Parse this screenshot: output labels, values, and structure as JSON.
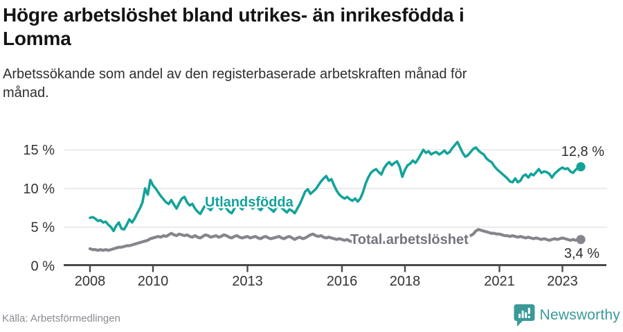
{
  "header": {
    "title_lines": [
      "Högre arbetslöshet bland utrikes- än inrikesfödda i",
      "Lomma"
    ],
    "subtitle_lines": [
      "Arbetssökande som andel av den registerbaserade arbetskraften månad för",
      "månad."
    ]
  },
  "footer": {
    "source": "Källa: Arbetsförmedlingen",
    "brand": "Newsworthy"
  },
  "colors": {
    "foreign_born_line": "#14a39a",
    "total_line": "#85858d",
    "total_label": "#74747e",
    "axis": "#4a4a4a",
    "gridline": "#e3e3e3",
    "tick_text": "#333333",
    "value_text": "#2e2e2e",
    "brand_teal": "#3a9a98"
  },
  "chart_data": {
    "type": "line",
    "title": "Högre arbetslöshet bland utrikes- än inrikesfödda i Lomma",
    "subtitle": "Arbetssökande som andel av den registerbaserade arbetskraften månad för månad.",
    "unit": "%",
    "frequency": "monthly",
    "x_start": "2008-01",
    "x_end": "2023-08",
    "xticks": [
      2008,
      2010,
      2013,
      2016,
      2018,
      2021,
      2023
    ],
    "yticks_pct": [
      0,
      5,
      10,
      15
    ],
    "ytick_label_suffix": " %",
    "ylim": [
      0,
      16.5
    ],
    "grid": "horizontal-only",
    "legend_position": "inline-labels",
    "series": [
      {
        "name": "Utlandsfödda",
        "color": "#14a39a",
        "end_label": "12,8 %",
        "end_value": 12.8,
        "values": [
          6.2,
          6.3,
          6.1,
          5.8,
          5.9,
          5.6,
          5.7,
          5.3,
          5.0,
          4.5,
          5.2,
          5.6,
          4.8,
          4.7,
          5.3,
          6.0,
          5.6,
          6.1,
          6.8,
          7.4,
          8.2,
          10.0,
          9.2,
          11.1,
          10.4,
          10.0,
          9.5,
          9.0,
          8.6,
          8.2,
          8.0,
          8.5,
          7.9,
          7.4,
          8.1,
          8.7,
          8.9,
          8.2,
          7.8,
          8.0,
          7.4,
          7.0,
          6.7,
          7.3,
          7.9,
          7.5,
          7.2,
          7.8,
          8.1,
          7.6,
          7.3,
          7.8,
          7.4,
          7.0,
          6.8,
          7.4,
          7.9,
          7.6,
          7.3,
          7.7,
          8.0,
          7.7,
          7.4,
          7.8,
          7.5,
          7.2,
          7.6,
          7.9,
          7.6,
          7.3,
          7.0,
          7.5,
          7.8,
          7.5,
          7.2,
          6.9,
          7.3,
          7.1,
          6.8,
          7.4,
          8.0,
          8.8,
          9.6,
          9.9,
          9.3,
          9.6,
          9.9,
          10.4,
          10.9,
          11.3,
          11.6,
          11.0,
          11.2,
          10.4,
          9.7,
          9.2,
          8.9,
          8.7,
          8.9,
          8.6,
          8.4,
          8.7,
          8.3,
          8.7,
          9.5,
          10.6,
          11.4,
          12.0,
          12.3,
          12.5,
          12.1,
          11.8,
          12.6,
          13.1,
          13.4,
          13.0,
          13.3,
          13.5,
          12.8,
          11.5,
          12.4,
          13.0,
          13.2,
          13.6,
          13.3,
          13.8,
          14.4,
          15.0,
          14.6,
          14.8,
          14.4,
          14.6,
          14.7,
          14.4,
          14.6,
          14.9,
          14.5,
          14.7,
          15.2,
          15.6,
          16.0,
          15.3,
          14.6,
          14.1,
          14.3,
          14.7,
          15.1,
          15.3,
          14.9,
          14.6,
          14.4,
          13.9,
          13.6,
          13.4,
          12.9,
          12.5,
          12.2,
          11.9,
          11.6,
          11.3,
          10.9,
          10.8,
          11.3,
          10.8,
          11.0,
          11.6,
          11.8,
          11.4,
          11.9,
          11.7,
          12.1,
          12.5,
          12.0,
          12.2,
          12.1,
          11.9,
          11.4,
          11.9,
          12.2,
          12.5,
          12.7,
          12.5,
          12.6,
          12.2,
          12.0,
          12.4,
          12.7,
          12.8
        ]
      },
      {
        "name": "Total arbetslöshet",
        "color": "#85858d",
        "end_label": "3,4 %",
        "end_value": 3.4,
        "values": [
          2.2,
          2.1,
          2.1,
          2.0,
          2.1,
          2.0,
          2.1,
          2.0,
          2.1,
          2.2,
          2.3,
          2.4,
          2.4,
          2.5,
          2.6,
          2.6,
          2.7,
          2.8,
          2.9,
          3.0,
          3.1,
          3.2,
          3.3,
          3.5,
          3.6,
          3.7,
          3.8,
          3.7,
          3.9,
          3.8,
          4.0,
          4.2,
          4.0,
          3.9,
          4.1,
          4.0,
          3.9,
          4.0,
          3.8,
          3.7,
          3.9,
          3.7,
          3.6,
          3.8,
          4.0,
          3.9,
          3.7,
          3.8,
          3.9,
          3.7,
          3.8,
          4.0,
          3.9,
          3.7,
          3.6,
          3.8,
          3.9,
          3.7,
          3.6,
          3.7,
          3.8,
          3.6,
          3.7,
          3.8,
          3.6,
          3.5,
          3.7,
          3.8,
          3.6,
          3.5,
          3.6,
          3.7,
          3.8,
          3.6,
          3.5,
          3.7,
          3.8,
          3.6,
          3.4,
          3.6,
          3.7,
          3.5,
          3.6,
          3.8,
          4.0,
          4.1,
          3.9,
          3.8,
          3.9,
          3.7,
          3.6,
          3.7,
          3.6,
          3.5,
          3.4,
          3.5,
          3.4,
          3.3,
          3.4,
          3.2,
          3.1,
          3.2,
          3.0,
          3.1,
          3.2,
          3.1,
          3.0,
          3.1,
          3.0,
          3.1,
          3.2,
          3.1,
          3.0,
          3.1,
          3.2,
          3.1,
          3.2,
          3.3,
          3.2,
          3.1,
          3.2,
          3.1,
          3.0,
          3.1,
          3.2,
          3.1,
          3.0,
          3.1,
          3.0,
          3.1,
          3.2,
          3.3,
          3.2,
          3.3,
          3.4,
          3.3,
          3.4,
          3.5,
          3.6,
          3.5,
          3.6,
          3.5,
          3.6,
          3.7,
          3.8,
          3.9,
          4.1,
          4.5,
          4.7,
          4.6,
          4.5,
          4.4,
          4.3,
          4.2,
          4.2,
          4.1,
          4.1,
          4.0,
          3.9,
          3.9,
          3.8,
          3.9,
          3.8,
          3.7,
          3.8,
          3.7,
          3.6,
          3.7,
          3.6,
          3.5,
          3.6,
          3.5,
          3.4,
          3.5,
          3.4,
          3.3,
          3.4,
          3.5,
          3.4,
          3.5,
          3.6,
          3.5,
          3.4,
          3.3,
          3.4,
          3.3,
          3.4,
          3.4
        ]
      }
    ]
  }
}
